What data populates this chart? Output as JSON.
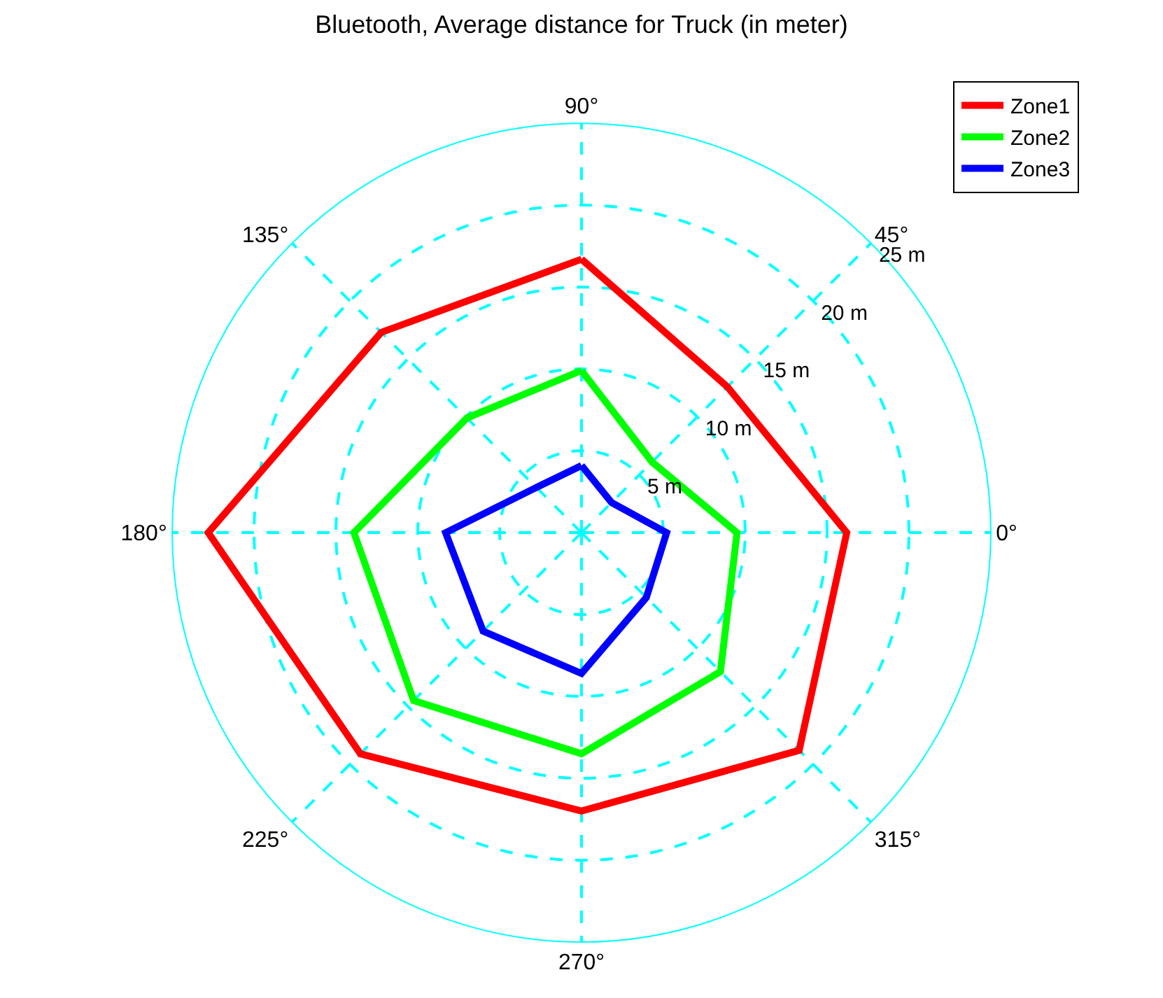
{
  "chart_data": {
    "type": "radar",
    "title": "Bluetooth, Average distance for Truck (in meter)",
    "categories": [
      "90°",
      "45°",
      "0°",
      "315°",
      "270°",
      "225°",
      "180°",
      "135°"
    ],
    "series": [
      {
        "name": "Zone1",
        "color": "#ff0000",
        "values": [
          16.7,
          12.6,
          16.2,
          18.8,
          17.0,
          19.1,
          22.8,
          17.3
        ]
      },
      {
        "name": "Zone2",
        "color": "#00ff00",
        "values": [
          9.9,
          6.1,
          9.5,
          12.0,
          13.5,
          14.5,
          13.9,
          9.9
        ]
      },
      {
        "name": "Zone3",
        "color": "#0000ff",
        "values": [
          4.1,
          2.6,
          5.2,
          5.6,
          8.6,
          8.5,
          8.3,
          3.9
        ]
      }
    ],
    "ylim": [
      0,
      25
    ],
    "yticks": [
      {
        "value": 5,
        "label": "5 m"
      },
      {
        "value": 10,
        "label": "10 m"
      },
      {
        "value": 15,
        "label": "15 m"
      },
      {
        "value": 20,
        "label": "20 m"
      },
      {
        "value": 25,
        "label": "25 m"
      }
    ],
    "grid": true,
    "legend": "top right",
    "line_style": "solid",
    "marker": "none"
  }
}
